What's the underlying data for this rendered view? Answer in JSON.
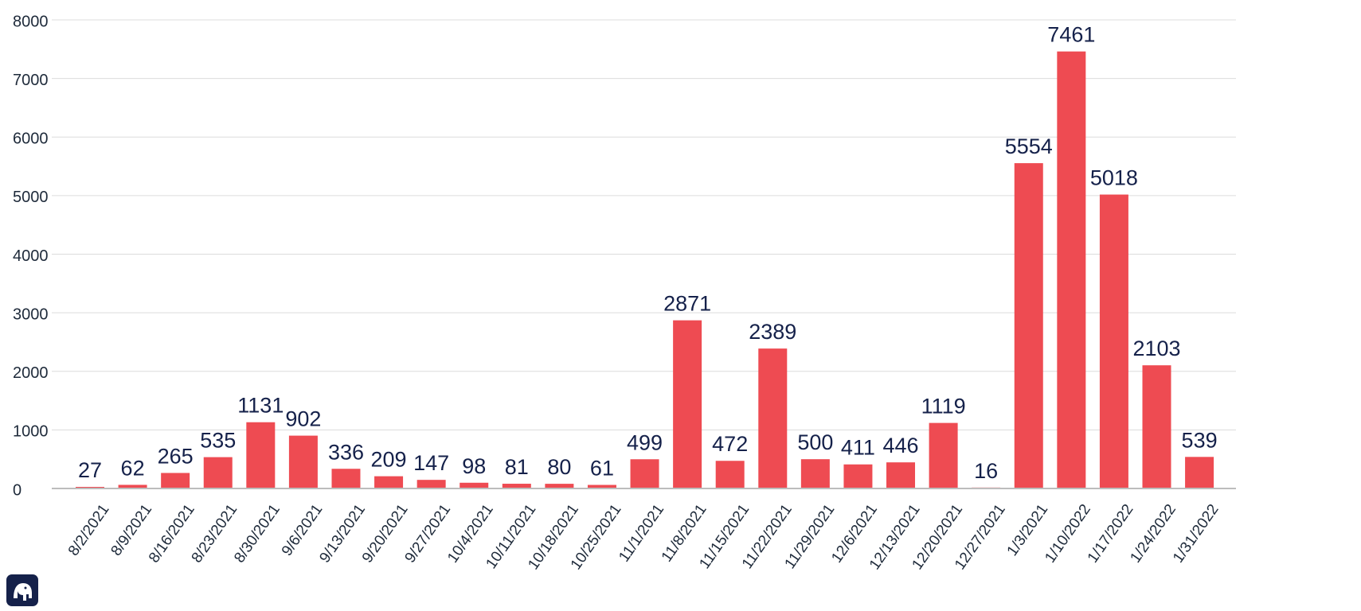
{
  "chart_data": {
    "type": "bar",
    "title": "",
    "xlabel": "",
    "ylabel": "",
    "ylim": [
      0,
      8000
    ],
    "yticks": [
      0,
      1000,
      2000,
      3000,
      4000,
      5000,
      6000,
      7000,
      8000
    ],
    "grid": true,
    "legend": "none",
    "bar_color": "#ee4b52",
    "label_color": "#15214a",
    "categories": [
      "8/2/2021",
      "8/9/2021",
      "8/16/2021",
      "8/23/2021",
      "8/30/2021",
      "9/6/2021",
      "9/13/2021",
      "9/20/2021",
      "9/27/2021",
      "10/4/2021",
      "10/11/2021",
      "10/18/2021",
      "10/25/2021",
      "11/1/2021",
      "11/8/2021",
      "11/15/2021",
      "11/22/2021",
      "11/29/2021",
      "12/6/2021",
      "12/13/2021",
      "12/20/2021",
      "12/27/2021",
      "1/3/2021",
      "1/10/2022",
      "1/17/2022",
      "1/24/2022",
      "1/31/2022"
    ],
    "values": [
      27,
      62,
      265,
      535,
      1131,
      902,
      336,
      209,
      147,
      98,
      81,
      80,
      61,
      499,
      2871,
      472,
      2389,
      500,
      411,
      446,
      1119,
      16,
      5554,
      7461,
      5018,
      2103,
      539
    ]
  },
  "logo": {
    "icon": "elephant-icon",
    "color": "#15214a"
  }
}
